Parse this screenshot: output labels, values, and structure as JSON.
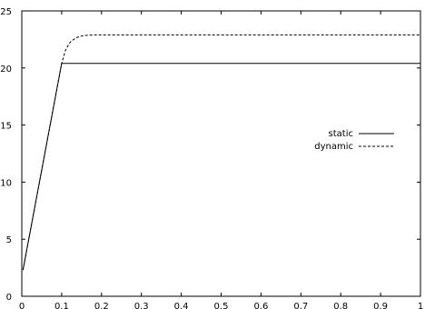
{
  "chart_data": {
    "type": "line",
    "title": "",
    "xlabel": "",
    "ylabel": "",
    "xlim": [
      0,
      1
    ],
    "ylim": [
      0,
      25
    ],
    "x_ticks": [
      0,
      0.1,
      0.2,
      0.3,
      0.4,
      0.5,
      0.6,
      0.7,
      0.8,
      0.9,
      1
    ],
    "y_ticks": [
      0,
      5,
      10,
      15,
      20,
      25
    ],
    "grid": false,
    "legend_position": "right",
    "series": [
      {
        "name": "static",
        "style": "solid",
        "color": "#000000",
        "x": [
          0.003,
          0.1,
          1.0
        ],
        "y": [
          2.3,
          20.4,
          20.4
        ]
      },
      {
        "name": "dynamic",
        "style": "dashed",
        "color": "#000000",
        "x": [
          0.003,
          0.1,
          0.11,
          0.12,
          0.13,
          0.14,
          0.15,
          0.16,
          0.17,
          0.18,
          0.2,
          0.25,
          0.3,
          1.0
        ],
        "y": [
          2.3,
          20.4,
          21.6,
          22.2,
          22.5,
          22.7,
          22.8,
          22.85,
          22.88,
          22.9,
          22.9,
          22.9,
          22.9,
          22.9
        ]
      }
    ]
  }
}
